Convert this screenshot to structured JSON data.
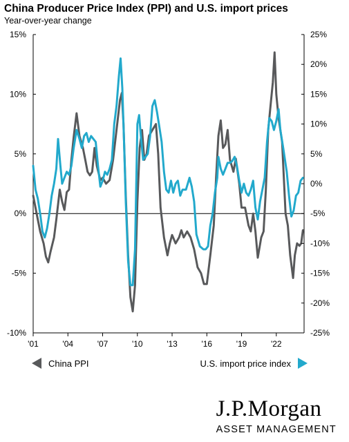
{
  "header": {
    "title": "China Producer Price Index (PPI) and U.S. import prices",
    "subtitle": "Year-over-year change"
  },
  "legend": {
    "china_ppi": "China PPI",
    "us_import": "U.S. import price index"
  },
  "logo": {
    "main": "J.P.Morgan",
    "sub": "ASSET MANAGEMENT"
  },
  "colors": {
    "china_ppi": "#58595b",
    "us_import": "#22a9cc"
  },
  "chart_data": {
    "type": "line",
    "x_ticks": [
      "'01",
      "'04",
      "'07",
      "'10",
      "'13",
      "'16",
      "'19",
      "'22"
    ],
    "x_tick_years": [
      2001,
      2004,
      2007,
      2010,
      2013,
      2016,
      2019,
      2022
    ],
    "xlim": [
      2001,
      2024.4
    ],
    "left_axis": {
      "ticks": [
        "-10%",
        "-5%",
        "0%",
        "5%",
        "10%",
        "15%"
      ],
      "ylim": [
        -10,
        15
      ],
      "unit": "%"
    },
    "right_axis": {
      "ticks": [
        "-25%",
        "-20%",
        "-15%",
        "-10%",
        "-5%",
        "0%",
        "5%",
        "10%",
        "15%",
        "20%",
        "25%"
      ],
      "ylim": [
        -25,
        25
      ],
      "unit": "%"
    },
    "series": [
      {
        "name": "China PPI",
        "axis": "left",
        "color": "#58595b",
        "points": [
          [
            2001.0,
            1.5
          ],
          [
            2001.3,
            0.0
          ],
          [
            2001.6,
            -1.5
          ],
          [
            2001.9,
            -2.5
          ],
          [
            2002.1,
            -3.6
          ],
          [
            2002.3,
            -4.1
          ],
          [
            2002.5,
            -3.2
          ],
          [
            2002.8,
            -2.0
          ],
          [
            2003.0,
            -0.5
          ],
          [
            2003.3,
            2.0
          ],
          [
            2003.5,
            1.0
          ],
          [
            2003.7,
            0.3
          ],
          [
            2003.9,
            1.8
          ],
          [
            2004.1,
            2.0
          ],
          [
            2004.3,
            4.5
          ],
          [
            2004.5,
            6.4
          ],
          [
            2004.75,
            8.4
          ],
          [
            2005.0,
            6.5
          ],
          [
            2005.3,
            5.5
          ],
          [
            2005.5,
            4.5
          ],
          [
            2005.7,
            3.5
          ],
          [
            2005.9,
            3.2
          ],
          [
            2006.1,
            3.5
          ],
          [
            2006.3,
            5.5
          ],
          [
            2006.5,
            4.0
          ],
          [
            2006.8,
            2.8
          ],
          [
            2007.0,
            3.0
          ],
          [
            2007.3,
            2.5
          ],
          [
            2007.6,
            2.8
          ],
          [
            2007.9,
            4.5
          ],
          [
            2008.2,
            7.0
          ],
          [
            2008.5,
            9.5
          ],
          [
            2008.65,
            10.1
          ],
          [
            2008.8,
            7.5
          ],
          [
            2009.0,
            1.5
          ],
          [
            2009.2,
            -3.5
          ],
          [
            2009.4,
            -7.0
          ],
          [
            2009.6,
            -8.2
          ],
          [
            2009.8,
            -6.0
          ],
          [
            2010.0,
            1.0
          ],
          [
            2010.2,
            5.5
          ],
          [
            2010.4,
            7.0
          ],
          [
            2010.6,
            4.5
          ],
          [
            2010.8,
            5.0
          ],
          [
            2011.0,
            6.5
          ],
          [
            2011.3,
            7.0
          ],
          [
            2011.6,
            7.5
          ],
          [
            2011.8,
            5.0
          ],
          [
            2012.0,
            0.5
          ],
          [
            2012.3,
            -2.0
          ],
          [
            2012.6,
            -3.5
          ],
          [
            2012.8,
            -2.5
          ],
          [
            2013.0,
            -1.8
          ],
          [
            2013.3,
            -2.5
          ],
          [
            2013.6,
            -2.0
          ],
          [
            2013.8,
            -1.4
          ],
          [
            2014.0,
            -2.0
          ],
          [
            2014.3,
            -1.5
          ],
          [
            2014.6,
            -2.0
          ],
          [
            2014.9,
            -3.0
          ],
          [
            2015.2,
            -4.5
          ],
          [
            2015.5,
            -5.0
          ],
          [
            2015.75,
            -5.9
          ],
          [
            2016.0,
            -5.9
          ],
          [
            2016.3,
            -3.5
          ],
          [
            2016.6,
            -1.0
          ],
          [
            2016.8,
            3.0
          ],
          [
            2017.0,
            6.5
          ],
          [
            2017.2,
            7.8
          ],
          [
            2017.4,
            5.5
          ],
          [
            2017.6,
            5.8
          ],
          [
            2017.8,
            7.0
          ],
          [
            2018.0,
            4.5
          ],
          [
            2018.3,
            3.5
          ],
          [
            2018.5,
            4.6
          ],
          [
            2018.8,
            2.5
          ],
          [
            2019.0,
            0.5
          ],
          [
            2019.3,
            0.5
          ],
          [
            2019.6,
            -1.0
          ],
          [
            2019.8,
            -1.5
          ],
          [
            2020.0,
            0.0
          ],
          [
            2020.2,
            -1.5
          ],
          [
            2020.4,
            -3.7
          ],
          [
            2020.7,
            -2.0
          ],
          [
            2020.9,
            -1.5
          ],
          [
            2021.1,
            2.0
          ],
          [
            2021.3,
            7.0
          ],
          [
            2021.5,
            9.0
          ],
          [
            2021.7,
            11.0
          ],
          [
            2021.85,
            13.5
          ],
          [
            2022.0,
            10.0
          ],
          [
            2022.2,
            8.0
          ],
          [
            2022.5,
            6.0
          ],
          [
            2022.8,
            0.0
          ],
          [
            2023.0,
            -1.0
          ],
          [
            2023.2,
            -3.5
          ],
          [
            2023.45,
            -5.4
          ],
          [
            2023.6,
            -3.5
          ],
          [
            2023.8,
            -2.5
          ],
          [
            2024.0,
            -2.7
          ],
          [
            2024.15,
            -2.5
          ],
          [
            2024.3,
            -1.4
          ]
        ]
      },
      {
        "name": "U.S. import price index",
        "axis": "right",
        "color": "#22a9cc",
        "points": [
          [
            2001.0,
            3.0
          ],
          [
            2001.2,
            -1.0
          ],
          [
            2001.4,
            -2.5
          ],
          [
            2001.6,
            -5.0
          ],
          [
            2001.8,
            -8.0
          ],
          [
            2002.0,
            -9.0
          ],
          [
            2002.2,
            -7.5
          ],
          [
            2002.4,
            -5.0
          ],
          [
            2002.6,
            -2.0
          ],
          [
            2002.8,
            0.0
          ],
          [
            2003.0,
            2.5
          ],
          [
            2003.15,
            7.5
          ],
          [
            2003.35,
            3.0
          ],
          [
            2003.5,
            0.0
          ],
          [
            2003.7,
            1.0
          ],
          [
            2003.9,
            2.0
          ],
          [
            2004.1,
            1.5
          ],
          [
            2004.3,
            3.0
          ],
          [
            2004.5,
            6.0
          ],
          [
            2004.75,
            9.0
          ],
          [
            2005.0,
            7.5
          ],
          [
            2005.2,
            6.0
          ],
          [
            2005.4,
            8.0
          ],
          [
            2005.6,
            8.5
          ],
          [
            2005.8,
            7.0
          ],
          [
            2006.0,
            8.0
          ],
          [
            2006.2,
            7.5
          ],
          [
            2006.4,
            7.0
          ],
          [
            2006.6,
            3.0
          ],
          [
            2006.8,
            -0.5
          ],
          [
            2007.0,
            0.5
          ],
          [
            2007.2,
            2.0
          ],
          [
            2007.4,
            1.5
          ],
          [
            2007.6,
            2.5
          ],
          [
            2007.8,
            4.0
          ],
          [
            2008.0,
            10.0
          ],
          [
            2008.2,
            13.0
          ],
          [
            2008.4,
            18.0
          ],
          [
            2008.55,
            21.0
          ],
          [
            2008.7,
            16.0
          ],
          [
            2008.85,
            7.0
          ],
          [
            2009.0,
            -3.0
          ],
          [
            2009.2,
            -13.0
          ],
          [
            2009.4,
            -17.0
          ],
          [
            2009.6,
            -17.0
          ],
          [
            2009.8,
            -11.0
          ],
          [
            2010.0,
            10.0
          ],
          [
            2010.15,
            11.5
          ],
          [
            2010.3,
            8.0
          ],
          [
            2010.5,
            4.0
          ],
          [
            2010.7,
            4.5
          ],
          [
            2010.9,
            5.0
          ],
          [
            2011.1,
            8.0
          ],
          [
            2011.3,
            13.0
          ],
          [
            2011.5,
            14.0
          ],
          [
            2011.7,
            12.0
          ],
          [
            2011.9,
            9.5
          ],
          [
            2012.1,
            7.0
          ],
          [
            2012.3,
            2.0
          ],
          [
            2012.5,
            -1.0
          ],
          [
            2012.7,
            -1.5
          ],
          [
            2012.9,
            0.5
          ],
          [
            2013.1,
            -1.5
          ],
          [
            2013.3,
            0.0
          ],
          [
            2013.5,
            0.5
          ],
          [
            2013.7,
            -2.0
          ],
          [
            2013.9,
            -1.0
          ],
          [
            2014.2,
            -1.0
          ],
          [
            2014.5,
            1.0
          ],
          [
            2014.7,
            -0.5
          ],
          [
            2014.9,
            -3.0
          ],
          [
            2015.1,
            -8.5
          ],
          [
            2015.4,
            -10.5
          ],
          [
            2015.7,
            -11.0
          ],
          [
            2015.9,
            -11.0
          ],
          [
            2016.1,
            -10.5
          ],
          [
            2016.3,
            -7.0
          ],
          [
            2016.5,
            -5.0
          ],
          [
            2016.7,
            -1.5
          ],
          [
            2016.9,
            1.0
          ],
          [
            2017.0,
            4.5
          ],
          [
            2017.2,
            2.5
          ],
          [
            2017.4,
            1.5
          ],
          [
            2017.6,
            2.5
          ],
          [
            2017.8,
            3.5
          ],
          [
            2018.0,
            3.5
          ],
          [
            2018.2,
            3.8
          ],
          [
            2018.4,
            4.5
          ],
          [
            2018.6,
            3.0
          ],
          [
            2018.8,
            0.5
          ],
          [
            2019.0,
            -1.5
          ],
          [
            2019.2,
            0.0
          ],
          [
            2019.4,
            -1.5
          ],
          [
            2019.6,
            -2.0
          ],
          [
            2019.8,
            -1.0
          ],
          [
            2020.0,
            0.5
          ],
          [
            2020.2,
            -4.0
          ],
          [
            2020.4,
            -6.0
          ],
          [
            2020.6,
            -3.0
          ],
          [
            2020.8,
            -1.0
          ],
          [
            2021.0,
            1.0
          ],
          [
            2021.2,
            7.0
          ],
          [
            2021.4,
            11.0
          ],
          [
            2021.6,
            10.5
          ],
          [
            2021.8,
            9.0
          ],
          [
            2022.0,
            10.5
          ],
          [
            2022.2,
            12.5
          ],
          [
            2022.35,
            9.0
          ],
          [
            2022.6,
            6.0
          ],
          [
            2022.9,
            2.0
          ],
          [
            2023.1,
            -2.0
          ],
          [
            2023.3,
            -5.5
          ],
          [
            2023.5,
            -4.5
          ],
          [
            2023.7,
            -2.0
          ],
          [
            2023.9,
            -1.5
          ],
          [
            2024.1,
            0.5
          ],
          [
            2024.3,
            1.0
          ]
        ]
      }
    ]
  }
}
